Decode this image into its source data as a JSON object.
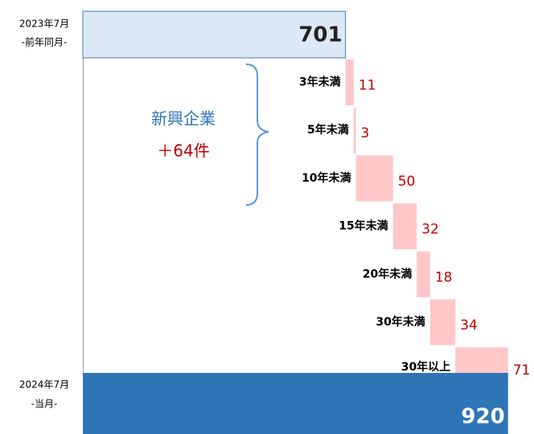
{
  "chart_data": {
    "type": "waterfall",
    "start": {
      "label": "2023年7月",
      "sublabel": "-前年同月-",
      "value": 701,
      "color": "#dce8f5",
      "border": "#4a7ab5"
    },
    "end": {
      "label": "2024年7月",
      "sublabel": "-当月-",
      "value": 920,
      "color": "#2e75b6"
    },
    "categories": [
      "3年未満",
      "5年未満",
      "10年未満",
      "15年未満",
      "20年未満",
      "30年未満",
      "30年以上"
    ],
    "values": [
      11,
      3,
      50,
      32,
      18,
      34,
      71
    ],
    "color": "#ffc7c7",
    "xlim": [
      347,
      955
    ],
    "annotation": {
      "title": "新興企業",
      "subtitle": "＋64件",
      "title_color": "#2e75b6",
      "subtitle_color": "#c00000"
    }
  }
}
